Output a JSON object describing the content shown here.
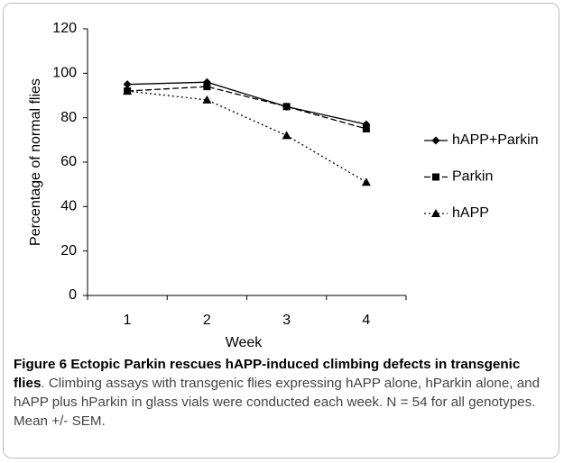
{
  "chart_data": {
    "type": "line",
    "xlabel": "Week",
    "ylabel": "Percentage of normal flies",
    "categories": [
      "1",
      "2",
      "3",
      "4"
    ],
    "series": [
      {
        "name": "hAPP+Parkin",
        "color": "#000000",
        "line_style": "solid",
        "marker": "diamond",
        "values": [
          95,
          96,
          85,
          77
        ]
      },
      {
        "name": "Parkin",
        "color": "#000000",
        "line_style": "dashed",
        "marker": "square",
        "values": [
          92,
          94,
          85,
          75
        ]
      },
      {
        "name": "hAPP",
        "color": "#000000",
        "line_style": "dotted",
        "marker": "triangle",
        "values": [
          92,
          88,
          72,
          51
        ]
      }
    ],
    "ylim": [
      0,
      120
    ],
    "yticks": [
      0,
      20,
      40,
      60,
      80,
      100,
      120
    ],
    "grid": false,
    "legend": "right"
  },
  "caption": {
    "label": "Figure 6",
    "title": "Ectopic Parkin rescues hAPP-induced climbing defects in transgenic flies",
    "text": ". Climbing assays with transgenic flies expressing hAPP alone, hParkin alone, and hAPP plus hParkin in glass vials were conducted each week. N = 54 for all genotypes. Mean +/- SEM."
  }
}
